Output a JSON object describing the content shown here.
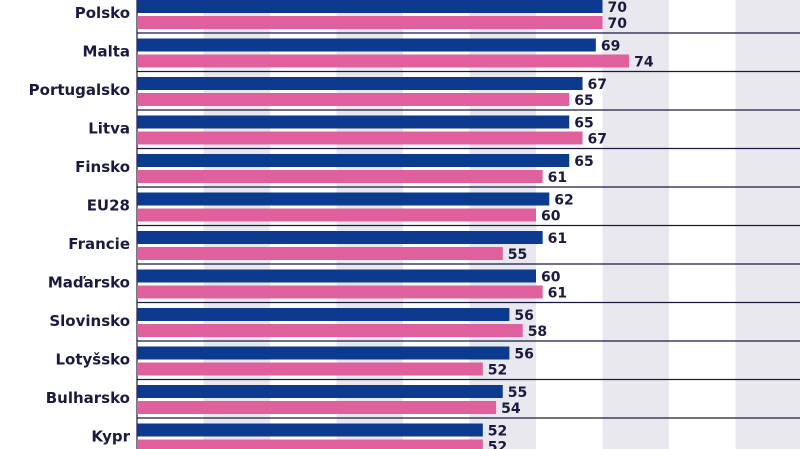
{
  "chart_data": {
    "type": "bar",
    "orientation": "horizontal",
    "categories": [
      "Polsko",
      "Malta",
      "Portugalsko",
      "Litva",
      "Finsko",
      "EU28",
      "Francie",
      "Maďarsko",
      "Slovinsko",
      "Lotyšsko",
      "Bulharsko",
      "Kypr"
    ],
    "series": [
      {
        "name": "series-1",
        "color": "#0b3a8f",
        "values": [
          70,
          69,
          67,
          65,
          65,
          62,
          61,
          60,
          56,
          56,
          55,
          52
        ]
      },
      {
        "name": "series-2",
        "color": "#e0609d",
        "values": [
          70,
          74,
          65,
          67,
          61,
          60,
          55,
          61,
          58,
          52,
          54,
          52
        ]
      }
    ],
    "xlim": [
      0,
      100
    ],
    "grid": "alternating vertical bands",
    "colors": {
      "band": "#e8e8ee",
      "separator": "#1a1a40",
      "text": "#1a1a40"
    }
  }
}
